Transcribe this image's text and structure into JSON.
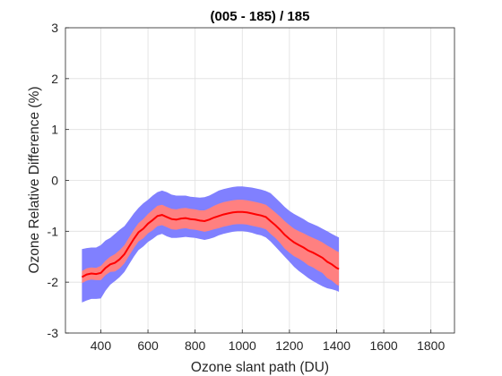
{
  "chart_data": {
    "type": "line",
    "title": "(005 - 185) / 185",
    "xlabel": "Ozone slant path (DU)",
    "ylabel": "Ozone Relative Difference (%)",
    "xlim": [
      250,
      1900
    ],
    "ylim": [
      -3,
      3
    ],
    "xticks": [
      400,
      600,
      800,
      1000,
      1200,
      1400,
      1600,
      1800
    ],
    "yticks": [
      -3,
      -2,
      -1,
      0,
      1,
      2,
      3
    ],
    "grid": true,
    "colors": {
      "mean": "#ff0000",
      "inner_band": "#ff8080",
      "outer_band": "#8080ff"
    },
    "series": [
      {
        "x": [
          320,
          340,
          360,
          380,
          400,
          420,
          440,
          460,
          480,
          500,
          520,
          540,
          560,
          580,
          600,
          620,
          640,
          660,
          680,
          700,
          720,
          740,
          760,
          780,
          800,
          820,
          840,
          860,
          880,
          900,
          920,
          940,
          960,
          980,
          1000,
          1020,
          1040,
          1060,
          1080,
          1100,
          1120,
          1140,
          1160,
          1180,
          1200,
          1220,
          1240,
          1260,
          1280,
          1300,
          1320,
          1340,
          1360,
          1380,
          1400,
          1410
        ],
        "mean": [
          -1.9,
          -1.85,
          -1.83,
          -1.84,
          -1.82,
          -1.72,
          -1.65,
          -1.62,
          -1.55,
          -1.45,
          -1.3,
          -1.15,
          -1.02,
          -0.95,
          -0.85,
          -0.78,
          -0.7,
          -0.68,
          -0.72,
          -0.76,
          -0.77,
          -0.75,
          -0.74,
          -0.76,
          -0.77,
          -0.79,
          -0.8,
          -0.77,
          -0.73,
          -0.7,
          -0.67,
          -0.65,
          -0.63,
          -0.62,
          -0.62,
          -0.63,
          -0.65,
          -0.67,
          -0.69,
          -0.72,
          -0.8,
          -0.88,
          -0.97,
          -1.07,
          -1.15,
          -1.22,
          -1.27,
          -1.32,
          -1.38,
          -1.42,
          -1.47,
          -1.52,
          -1.6,
          -1.65,
          -1.72,
          -1.74
        ],
        "inner_upper": [
          -1.78,
          -1.73,
          -1.71,
          -1.72,
          -1.68,
          -1.58,
          -1.5,
          -1.45,
          -1.37,
          -1.27,
          -1.12,
          -0.97,
          -0.84,
          -0.76,
          -0.66,
          -0.58,
          -0.5,
          -0.48,
          -0.52,
          -0.56,
          -0.57,
          -0.55,
          -0.54,
          -0.56,
          -0.57,
          -0.59,
          -0.59,
          -0.55,
          -0.5,
          -0.46,
          -0.43,
          -0.41,
          -0.39,
          -0.38,
          -0.38,
          -0.39,
          -0.41,
          -0.43,
          -0.45,
          -0.48,
          -0.55,
          -0.63,
          -0.71,
          -0.8,
          -0.88,
          -0.95,
          -1.0,
          -1.04,
          -1.09,
          -1.13,
          -1.17,
          -1.22,
          -1.28,
          -1.33,
          -1.39,
          -1.41
        ],
        "inner_lower": [
          -2.02,
          -1.97,
          -1.95,
          -1.96,
          -1.96,
          -1.86,
          -1.8,
          -1.79,
          -1.73,
          -1.63,
          -1.48,
          -1.33,
          -1.2,
          -1.14,
          -1.04,
          -0.98,
          -0.9,
          -0.88,
          -0.92,
          -0.96,
          -0.97,
          -0.95,
          -0.94,
          -0.96,
          -0.97,
          -0.99,
          -1.01,
          -0.99,
          -0.96,
          -0.94,
          -0.91,
          -0.89,
          -0.87,
          -0.86,
          -0.86,
          -0.87,
          -0.89,
          -0.91,
          -0.93,
          -0.96,
          -1.05,
          -1.13,
          -1.23,
          -1.34,
          -1.42,
          -1.49,
          -1.54,
          -1.6,
          -1.67,
          -1.71,
          -1.77,
          -1.82,
          -1.92,
          -1.97,
          -2.05,
          -2.07
        ],
        "outer_upper": [
          -1.35,
          -1.33,
          -1.32,
          -1.32,
          -1.27,
          -1.18,
          -1.13,
          -1.05,
          -0.97,
          -0.9,
          -0.78,
          -0.65,
          -0.54,
          -0.45,
          -0.38,
          -0.3,
          -0.23,
          -0.2,
          -0.23,
          -0.28,
          -0.3,
          -0.3,
          -0.3,
          -0.32,
          -0.33,
          -0.34,
          -0.33,
          -0.3,
          -0.25,
          -0.2,
          -0.17,
          -0.15,
          -0.13,
          -0.12,
          -0.12,
          -0.13,
          -0.14,
          -0.16,
          -0.18,
          -0.21,
          -0.25,
          -0.34,
          -0.43,
          -0.52,
          -0.6,
          -0.66,
          -0.71,
          -0.76,
          -0.82,
          -0.86,
          -0.9,
          -0.95,
          -1.0,
          -1.05,
          -1.1,
          -1.12
        ],
        "outer_lower": [
          -2.4,
          -2.36,
          -2.33,
          -2.33,
          -2.32,
          -2.17,
          -2.05,
          -1.98,
          -1.9,
          -1.8,
          -1.65,
          -1.5,
          -1.37,
          -1.3,
          -1.21,
          -1.15,
          -1.08,
          -1.05,
          -1.1,
          -1.13,
          -1.13,
          -1.12,
          -1.11,
          -1.12,
          -1.13,
          -1.15,
          -1.17,
          -1.15,
          -1.12,
          -1.08,
          -1.05,
          -1.03,
          -1.01,
          -1.0,
          -1.0,
          -1.01,
          -1.03,
          -1.06,
          -1.08,
          -1.12,
          -1.2,
          -1.3,
          -1.4,
          -1.5,
          -1.6,
          -1.7,
          -1.78,
          -1.85,
          -1.92,
          -1.98,
          -2.03,
          -2.08,
          -2.12,
          -2.14,
          -2.17,
          -2.19
        ]
      }
    ]
  }
}
